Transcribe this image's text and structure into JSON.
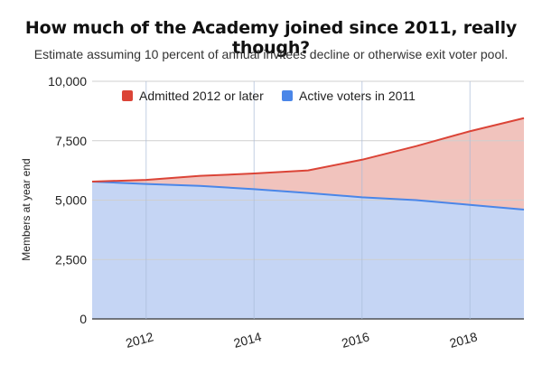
{
  "chart_data": {
    "type": "area",
    "title": "How much of the Academy joined since 2011, really though?",
    "subtitle": "Estimate assuming 10 percent of annual invitees decline or otherwise exit voter pool.",
    "ylabel": "Members at year end",
    "xlabel": "",
    "stacked": true,
    "x": [
      2011,
      2012,
      2013,
      2014,
      2015,
      2016,
      2017,
      2018,
      2019
    ],
    "xticks": [
      2012,
      2014,
      2016,
      2018
    ],
    "xlim": [
      2011,
      2019
    ],
    "ylim": [
      0,
      10000
    ],
    "yticks": [
      0,
      2500,
      5000,
      7500,
      10000
    ],
    "ytick_labels": [
      "0",
      "2,500",
      "5,000",
      "7,500",
      "10,000"
    ],
    "grid": true,
    "legend_position": "top",
    "series": [
      {
        "name": "Admitted 2012 or later",
        "color": "#db4437",
        "fill": "#f1c3bd",
        "values": [
          0,
          170,
          420,
          660,
          950,
          1580,
          2270,
          3100,
          3850
        ]
      },
      {
        "name": "Active voters in 2011",
        "color": "#4a86e8",
        "fill": "#c5d5f4",
        "values": [
          5780,
          5680,
          5600,
          5460,
          5300,
          5120,
          5000,
          4800,
          4600
        ]
      }
    ]
  }
}
